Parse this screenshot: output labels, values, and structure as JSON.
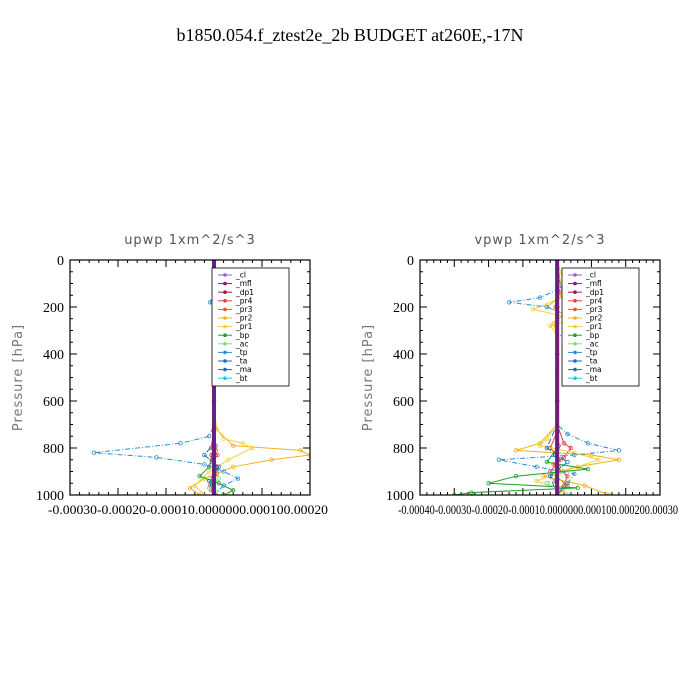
{
  "figure": {
    "title": "b1850.054.f_ztest2e_2b  BUDGET at260E,-17N"
  },
  "legend_entries": [
    {
      "label": "_cl",
      "color": "#9a5ccf"
    },
    {
      "label": "_mfl",
      "color": "#7a1f6e"
    },
    {
      "label": "_dp1",
      "color": "#9b1b4a"
    },
    {
      "label": "_pr4",
      "color": "#e0403a"
    },
    {
      "label": "_pr3",
      "color": "#e8503c"
    },
    {
      "label": "_pr2",
      "color": "#f0b21a"
    },
    {
      "label": "_pr1",
      "color": "#f5d23a"
    },
    {
      "label": "_bp",
      "color": "#1a9e2a"
    },
    {
      "label": "_ac",
      "color": "#7ee07a"
    },
    {
      "label": "_tp",
      "color": "#2a8fd0"
    },
    {
      "label": "_ta",
      "color": "#2a5fd0"
    },
    {
      "label": "_ma",
      "color": "#1a6fb0"
    },
    {
      "label": "_bt",
      "color": "#1ad0e0"
    }
  ],
  "chart_data": [
    {
      "type": "line",
      "title": "upwp   1xm^2/s^3",
      "ylabel": "Pressure [hPa]",
      "xlim": [
        -0.0003,
        0.0002
      ],
      "ylim": [
        1000,
        0
      ],
      "yticks": [
        0,
        200,
        400,
        600,
        800,
        1000
      ],
      "xtick_labels": "-0.00030-0.00020-0.00010.0000000.000100.00020",
      "legend": "top-right",
      "series": [
        {
          "name": "_cl",
          "points": [
            [
              0,
              0
            ],
            [
              0,
              200
            ],
            [
              0,
              400
            ],
            [
              0,
              600
            ],
            [
              0,
              800
            ],
            [
              0,
              1000
            ]
          ]
        },
        {
          "name": "_mfl",
          "points": [
            [
              0,
              0
            ],
            [
              0,
              200
            ],
            [
              0,
              400
            ],
            [
              0,
              600
            ],
            [
              0,
              800
            ],
            [
              0,
              1000
            ]
          ]
        },
        {
          "name": "_dp1",
          "points": [
            [
              0,
              0
            ],
            [
              0,
              700
            ],
            [
              3e-06,
              790
            ],
            [
              -5e-06,
              830
            ],
            [
              6e-06,
              880
            ],
            [
              -3e-06,
              940
            ],
            [
              0,
              1000
            ]
          ]
        },
        {
          "name": "_pr4",
          "points": [
            [
              0,
              0
            ],
            [
              0,
              720
            ],
            [
              -6e-06,
              800
            ],
            [
              7e-06,
              830
            ],
            [
              -4e-06,
              860
            ],
            [
              5e-06,
              900
            ],
            [
              -8e-06,
              960
            ],
            [
              4e-06,
              1000
            ]
          ]
        },
        {
          "name": "_pr3",
          "points": [
            [
              0,
              0
            ],
            [
              0,
              740
            ],
            [
              4e-06,
              810
            ],
            [
              -5e-06,
              850
            ],
            [
              6e-06,
              910
            ],
            [
              -6e-06,
              980
            ],
            [
              0,
              1000
            ]
          ]
        },
        {
          "name": "_pr2",
          "points": [
            [
              0,
              0
            ],
            [
              2e-06,
              200
            ],
            [
              0,
              600
            ],
            [
              5e-06,
              720
            ],
            [
              4e-05,
              790
            ],
            [
              0.00018,
              810
            ],
            [
              0.0002,
              830
            ],
            [
              0.00012,
              850
            ],
            [
              4e-05,
              880
            ],
            [
              -2e-05,
              930
            ],
            [
              -5e-05,
              970
            ],
            [
              -3e-05,
              1000
            ]
          ]
        },
        {
          "name": "_pr1",
          "points": [
            [
              0,
              0
            ],
            [
              0,
              700
            ],
            [
              2e-05,
              760
            ],
            [
              6e-05,
              780
            ],
            [
              8e-05,
              800
            ],
            [
              3e-05,
              850
            ],
            [
              -1e-05,
              900
            ],
            [
              -4e-05,
              960
            ],
            [
              -2e-05,
              1000
            ]
          ]
        },
        {
          "name": "_bp",
          "points": [
            [
              0,
              0
            ],
            [
              0,
              800
            ],
            [
              -1e-05,
              880
            ],
            [
              -3e-05,
              920
            ],
            [
              1e-05,
              950
            ],
            [
              4e-05,
              980
            ],
            [
              2e-05,
              1000
            ]
          ]
        },
        {
          "name": "_ac",
          "points": [
            [
              0,
              0
            ],
            [
              0,
              850
            ],
            [
              1e-05,
              930
            ],
            [
              -1e-05,
              970
            ],
            [
              3e-05,
              1000
            ]
          ]
        },
        {
          "name": "_tp",
          "points": [
            [
              0,
              0
            ],
            [
              0,
              150
            ],
            [
              -8e-06,
              180
            ],
            [
              4e-06,
              220
            ],
            [
              0,
              700
            ],
            [
              -1e-05,
              750
            ],
            [
              -7e-05,
              780
            ],
            [
              -0.00025,
              820
            ],
            [
              -0.00012,
              840
            ],
            [
              -2e-05,
              870
            ],
            [
              2e-05,
              900
            ],
            [
              5e-05,
              930
            ],
            [
              2e-05,
              960
            ],
            [
              0,
              1000
            ]
          ]
        },
        {
          "name": "_ta",
          "points": [
            [
              0,
              0
            ],
            [
              0,
              1000
            ]
          ]
        },
        {
          "name": "_ma",
          "points": [
            [
              0,
              0
            ],
            [
              0,
              780
            ],
            [
              -2e-05,
              830
            ],
            [
              1e-05,
              880
            ],
            [
              -1e-05,
              940
            ],
            [
              0,
              1000
            ]
          ]
        },
        {
          "name": "_bt",
          "points": [
            [
              0,
              0
            ],
            [
              0,
              1000
            ]
          ]
        }
      ]
    },
    {
      "type": "line",
      "title": "vpwp   1xm^2/s^3",
      "ylabel": "Pressure [hPa]",
      "xlim": [
        -0.0004,
        0.0003
      ],
      "ylim": [
        1000,
        0
      ],
      "yticks": [
        0,
        200,
        400,
        600,
        800,
        1000
      ],
      "xtick_labels": "-0.00040-0.00030-0.00020-0.00010.0000000.000100.000200.00030",
      "legend": "top-right",
      "series": [
        {
          "name": "_cl",
          "points": [
            [
              0,
              0
            ],
            [
              0,
              200
            ],
            [
              0,
              400
            ],
            [
              0,
              600
            ],
            [
              0,
              800
            ],
            [
              0,
              1000
            ]
          ]
        },
        {
          "name": "_mfl",
          "points": [
            [
              0,
              0
            ],
            [
              0,
              200
            ],
            [
              0,
              400
            ],
            [
              0,
              600
            ],
            [
              0,
              800
            ],
            [
              0,
              1000
            ]
          ]
        },
        {
          "name": "_dp1",
          "points": [
            [
              0,
              0
            ],
            [
              0,
              700
            ],
            [
              4e-06,
              790
            ],
            [
              -6e-06,
              830
            ],
            [
              5e-06,
              880
            ],
            [
              -4e-06,
              940
            ],
            [
              0,
              1000
            ]
          ]
        },
        {
          "name": "_pr4",
          "points": [
            [
              0,
              0
            ],
            [
              6e-06,
              140
            ],
            [
              -4e-06,
              200
            ],
            [
              0,
              700
            ],
            [
              2e-05,
              780
            ],
            [
              4e-05,
              800
            ],
            [
              2e-05,
              840
            ],
            [
              -1e-05,
              870
            ],
            [
              3e-05,
              920
            ],
            [
              2e-05,
              960
            ],
            [
              0,
              1000
            ]
          ]
        },
        {
          "name": "_pr3",
          "points": [
            [
              0,
              0
            ],
            [
              0,
              730
            ],
            [
              -2e-05,
              800
            ],
            [
              1e-05,
              850
            ],
            [
              -2e-05,
              900
            ],
            [
              3e-05,
              960
            ],
            [
              0,
              1000
            ]
          ]
        },
        {
          "name": "_pr2",
          "points": [
            [
              0,
              0
            ],
            [
              1.5e-05,
              150
            ],
            [
              -3e-05,
              200
            ],
            [
              2e-05,
              230
            ],
            [
              -1e-05,
              270
            ],
            [
              0,
              320
            ],
            [
              0,
              700
            ],
            [
              -5e-05,
              780
            ],
            [
              -0.00012,
              810
            ],
            [
              0.0001,
              830
            ],
            [
              0.00018,
              850
            ],
            [
              6e-05,
              880
            ],
            [
              -4e-05,
              920
            ],
            [
              8e-05,
              960
            ],
            [
              0.00015,
              1000
            ]
          ]
        },
        {
          "name": "_pr1",
          "points": [
            [
              0,
              0
            ],
            [
              3e-05,
              150
            ],
            [
              -7e-05,
              210
            ],
            [
              5e-05,
              250
            ],
            [
              -2e-05,
              280
            ],
            [
              0,
              320
            ],
            [
              0,
              700
            ],
            [
              -3e-05,
              760
            ],
            [
              -5e-05,
              790
            ],
            [
              5e-05,
              820
            ],
            [
              0.00012,
              850
            ],
            [
              4e-05,
              890
            ],
            [
              -6e-05,
              940
            ],
            [
              2e-05,
              980
            ],
            [
              0,
              1000
            ]
          ]
        },
        {
          "name": "_bp",
          "points": [
            [
              0,
              0
            ],
            [
              0,
              800
            ],
            [
              -3e-05,
              860
            ],
            [
              9e-05,
              890
            ],
            [
              -0.00012,
              920
            ],
            [
              -0.0002,
              950
            ],
            [
              6e-05,
              970
            ],
            [
              -0.00025,
              990
            ],
            [
              -0.0003,
              1000
            ]
          ]
        },
        {
          "name": "_ac",
          "points": [
            [
              0,
              0
            ],
            [
              0,
              850
            ],
            [
              2e-05,
              900
            ],
            [
              -3e-05,
              950
            ],
            [
              4e-05,
              1000
            ]
          ]
        },
        {
          "name": "_tp",
          "points": [
            [
              0,
              0
            ],
            [
              1e-05,
              120
            ],
            [
              -5e-05,
              160
            ],
            [
              -0.00014,
              180
            ],
            [
              -3e-05,
              200
            ],
            [
              4e-05,
              240
            ],
            [
              6e-05,
              270
            ],
            [
              2e-05,
              300
            ],
            [
              0,
              340
            ],
            [
              0,
              700
            ],
            [
              3e-05,
              740
            ],
            [
              9e-05,
              780
            ],
            [
              0.00018,
              810
            ],
            [
              5e-05,
              830
            ],
            [
              -0.00017,
              850
            ],
            [
              -6e-05,
              880
            ],
            [
              5e-05,
              910
            ],
            [
              3e-05,
              950
            ],
            [
              0,
              1000
            ]
          ]
        },
        {
          "name": "_ta",
          "points": [
            [
              0,
              0
            ],
            [
              0,
              1000
            ]
          ]
        },
        {
          "name": "_ma",
          "points": [
            [
              0,
              0
            ],
            [
              0,
              700
            ],
            [
              -3e-05,
              800
            ],
            [
              3e-05,
              860
            ],
            [
              -2e-05,
              920
            ],
            [
              0,
              1000
            ]
          ]
        },
        {
          "name": "_bt",
          "points": [
            [
              0,
              0
            ],
            [
              0,
              1000
            ]
          ]
        }
      ]
    }
  ]
}
